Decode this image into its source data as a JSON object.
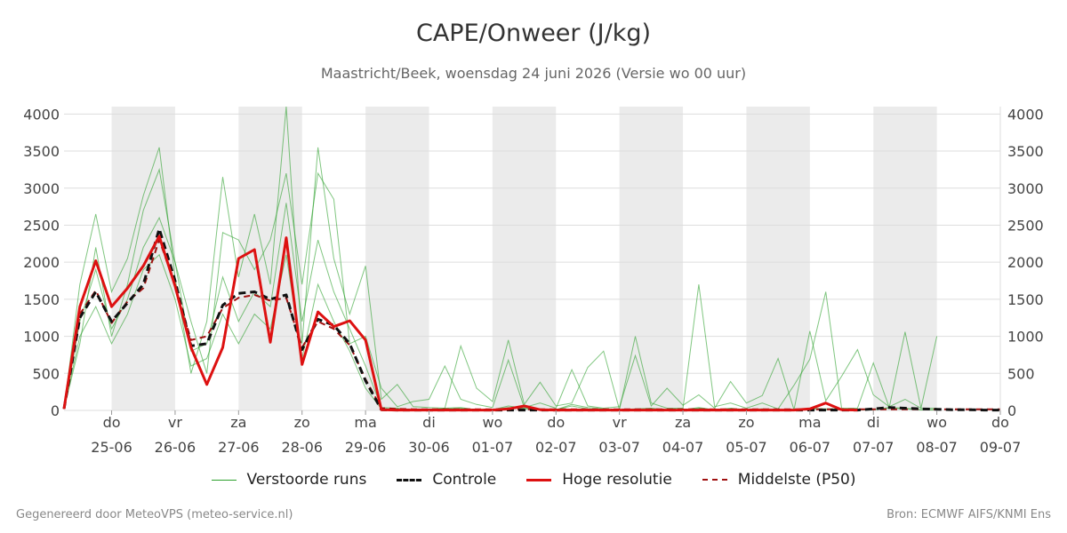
{
  "title": "CAPE/Onweer (J/kg)",
  "subtitle": "Maastricht/Beek, woensdag 24 juni 2026 (Versie wo 00 uur)",
  "footer_left": "Gegenereerd door MeteoVPS (meteo-service.nl)",
  "footer_right": "Bron: ECMWF AIFS/KNMI Ens",
  "legend": [
    {
      "label": "Verstoorde runs",
      "color": "#2ca02c",
      "style": "solid-thin"
    },
    {
      "label": "Controle",
      "color": "#111111",
      "style": "dashed-thick"
    },
    {
      "label": "Hoge resolutie",
      "color": "#dd1111",
      "style": "solid-thick"
    },
    {
      "label": "Middelste (P50)",
      "color": "#a01010",
      "style": "dashed"
    }
  ],
  "chart_data": {
    "type": "line",
    "ylim": [
      0,
      4100
    ],
    "yticks": [
      0,
      500,
      1000,
      1500,
      2000,
      2500,
      3000,
      3500,
      4000
    ],
    "x_step_hours": 6,
    "x_start": "2026-06-24 06:00",
    "x_end": "2026-07-09 00:00",
    "xticks": [
      {
        "day": "do",
        "date": "25-06"
      },
      {
        "day": "vr",
        "date": "26-06"
      },
      {
        "day": "za",
        "date": "27-06"
      },
      {
        "day": "zo",
        "date": "28-06"
      },
      {
        "day": "ma",
        "date": "29-06"
      },
      {
        "day": "di",
        "date": "30-06"
      },
      {
        "day": "wo",
        "date": "01-07"
      },
      {
        "day": "do",
        "date": "02-07"
      },
      {
        "day": "vr",
        "date": "03-07"
      },
      {
        "day": "za",
        "date": "04-07"
      },
      {
        "day": "zo",
        "date": "05-07"
      },
      {
        "day": "ma",
        "date": "06-07"
      },
      {
        "day": "di",
        "date": "07-07"
      },
      {
        "day": "wo",
        "date": "08-07"
      },
      {
        "day": "do",
        "date": "09-07"
      }
    ],
    "weekend_shading_days": [
      "25-06",
      "27-06",
      "29-06",
      "01-07",
      "03-07",
      "05-07",
      "07-07"
    ],
    "series": [
      {
        "name": "Hoge resolutie",
        "start": "2026-06-24 06:00",
        "values": [
          20,
          1400,
          2020,
          1400,
          1650,
          1950,
          2350,
          1680,
          850,
          350,
          850,
          2050,
          2170,
          920,
          2330,
          620,
          1330,
          1130,
          1210,
          950,
          10,
          5,
          5,
          5,
          5,
          5,
          5,
          5,
          20,
          60,
          10,
          5,
          5,
          5,
          5,
          5,
          5,
          5,
          5,
          5,
          5,
          5,
          5,
          5,
          5,
          5,
          5,
          20,
          100,
          10,
          5
        ]
      },
      {
        "name": "Controle",
        "start": "2026-06-24 06:00",
        "values": [
          20,
          1250,
          1600,
          1200,
          1450,
          1700,
          2450,
          1750,
          870,
          900,
          1420,
          1580,
          1600,
          1500,
          1560,
          820,
          1230,
          1150,
          900,
          400,
          10,
          5,
          5,
          5,
          5,
          5,
          5,
          5,
          5,
          5,
          5,
          5,
          5,
          5,
          5,
          5,
          5,
          5,
          5,
          5,
          5,
          5,
          5,
          5,
          5,
          5,
          5,
          5,
          5,
          5,
          5,
          20,
          40,
          30,
          20,
          15,
          10,
          10,
          5,
          5,
          5,
          5,
          5,
          5,
          5,
          5,
          5,
          5,
          5,
          5,
          5,
          5,
          5,
          5,
          5,
          5,
          5,
          5,
          5,
          5,
          5,
          5,
          5,
          5,
          5,
          5,
          5,
          5,
          5
        ]
      },
      {
        "name": "Middelste (P50)",
        "start": "2026-06-24 06:00",
        "values": [
          20,
          1300,
          1620,
          1180,
          1470,
          1650,
          2300,
          1700,
          950,
          1000,
          1380,
          1520,
          1560,
          1480,
          1520,
          850,
          1200,
          1100,
          880,
          420,
          30,
          20,
          15,
          15,
          15,
          15,
          15,
          15,
          15,
          15,
          15,
          15,
          15,
          15,
          15,
          15,
          15,
          15,
          15,
          15,
          15,
          15,
          15,
          15,
          15,
          15,
          15,
          15,
          15,
          15,
          15,
          15,
          15,
          15,
          15,
          15,
          15,
          15,
          15,
          15,
          15,
          15,
          15,
          15,
          15,
          15,
          15,
          15,
          15,
          15,
          15,
          15,
          15,
          15,
          15,
          15,
          15,
          15,
          15,
          15,
          15,
          15,
          15,
          15,
          15,
          15,
          15,
          15,
          15
        ]
      },
      {
        "name": "Verstoorde runs",
        "ensemble": true,
        "start": "2026-06-24 06:00",
        "values": [
          [
            20,
            1700,
            2650,
            1600,
            2050,
            2900,
            3550,
            1800,
            500,
            1200,
            3150,
            1800,
            2650,
            1700,
            4100,
            900,
            3550,
            2050,
            1300,
            1950,
            150,
            350,
            50,
            40,
            30,
            870,
            300,
            120,
            950,
            80,
            380,
            60,
            100,
            580,
            800,
            10,
            1000,
            100,
            30,
            30,
            1700,
            50,
            100,
            30,
            100,
            20,
            340,
            690,
            1600,
            30,
            30,
            640,
            40,
            1060,
            30,
            1000
          ],
          [
            20,
            900,
            2200,
            1000,
            1700,
            2700,
            3250,
            2000,
            1200,
            500,
            2400,
            2300,
            1900,
            2300,
            3200,
            1700,
            3200,
            2850,
            900,
            1000,
            300,
            50,
            120,
            150,
            600,
            150,
            80,
            40,
            680,
            40,
            100,
            30,
            550,
            60,
            30,
            50,
            740,
            60,
            300,
            70,
            210,
            30,
            390,
            100,
            200,
            700,
            10,
            1070,
            130,
            460,
            820,
            210,
            50,
            150,
            30,
            30
          ]
        ]
      },
      {
        "name": "",
        "ensemble": true,
        "start": "2026-06-24 06:00",
        "values": [
          [
            20,
            1200,
            1900,
            1100,
            1500,
            2200,
            2600,
            2000,
            800,
            900,
            1800,
            1200,
            1600,
            1400,
            2800,
            1200,
            2300,
            1600,
            1100,
            600,
            40,
            30,
            10,
            10,
            30,
            40,
            10,
            10,
            60,
            30,
            20,
            10,
            80,
            40,
            20,
            10,
            20,
            30,
            10,
            10,
            40,
            10,
            30,
            10,
            20,
            10,
            10,
            30,
            20,
            20,
            10,
            10,
            40,
            30,
            10,
            10
          ],
          [
            20,
            1000,
            1400,
            900,
            1300,
            1900,
            2100,
            1500,
            600,
            700,
            1300,
            900,
            1300,
            1100,
            2100,
            700,
            1700,
            1200,
            800,
            300,
            20,
            20,
            10,
            10,
            20,
            30,
            10,
            10,
            40,
            20,
            10,
            10,
            60,
            20,
            10,
            10,
            10,
            20,
            10,
            10,
            30,
            10,
            20,
            10,
            10,
            10,
            10,
            20,
            10,
            10,
            10,
            10,
            30,
            20,
            10,
            10
          ]
        ]
      }
    ]
  }
}
